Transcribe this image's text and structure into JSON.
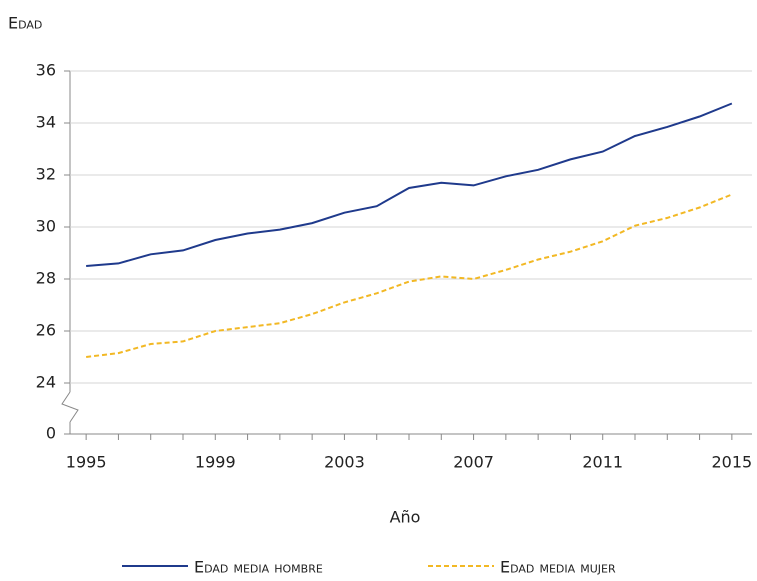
{
  "chart_data": {
    "type": "line",
    "y_label": "Edad",
    "x_label": "Año",
    "categories": [
      "1995",
      null,
      null,
      null,
      "1999",
      null,
      null,
      null,
      "2003",
      null,
      null,
      null,
      "2007",
      null,
      null,
      null,
      "2011",
      null,
      null,
      null,
      "2015"
    ],
    "series": [
      {
        "name": "Edad media hombre",
        "color": "#1f3a8c",
        "dash": false,
        "values": [
          28.5,
          28.6,
          28.95,
          29.1,
          29.5,
          29.75,
          29.9,
          30.15,
          30.55,
          30.8,
          31.5,
          31.7,
          31.6,
          31.95,
          32.2,
          32.6,
          32.9,
          33.5,
          33.85,
          34.25,
          34.75
        ]
      },
      {
        "name": "Edad media mujer",
        "color": "#f2b824",
        "dash": true,
        "values": [
          25.0,
          25.15,
          25.5,
          25.6,
          26.0,
          26.15,
          26.3,
          26.65,
          27.1,
          27.45,
          27.9,
          28.1,
          28.0,
          28.35,
          28.75,
          29.05,
          29.45,
          30.05,
          30.35,
          30.75,
          31.25
        ]
      }
    ],
    "ylim": [
      0,
      36
    ],
    "y_break": [
      0,
      24
    ],
    "yticks": [
      0,
      24,
      26,
      28,
      30,
      32,
      34,
      36
    ],
    "grid": true
  }
}
